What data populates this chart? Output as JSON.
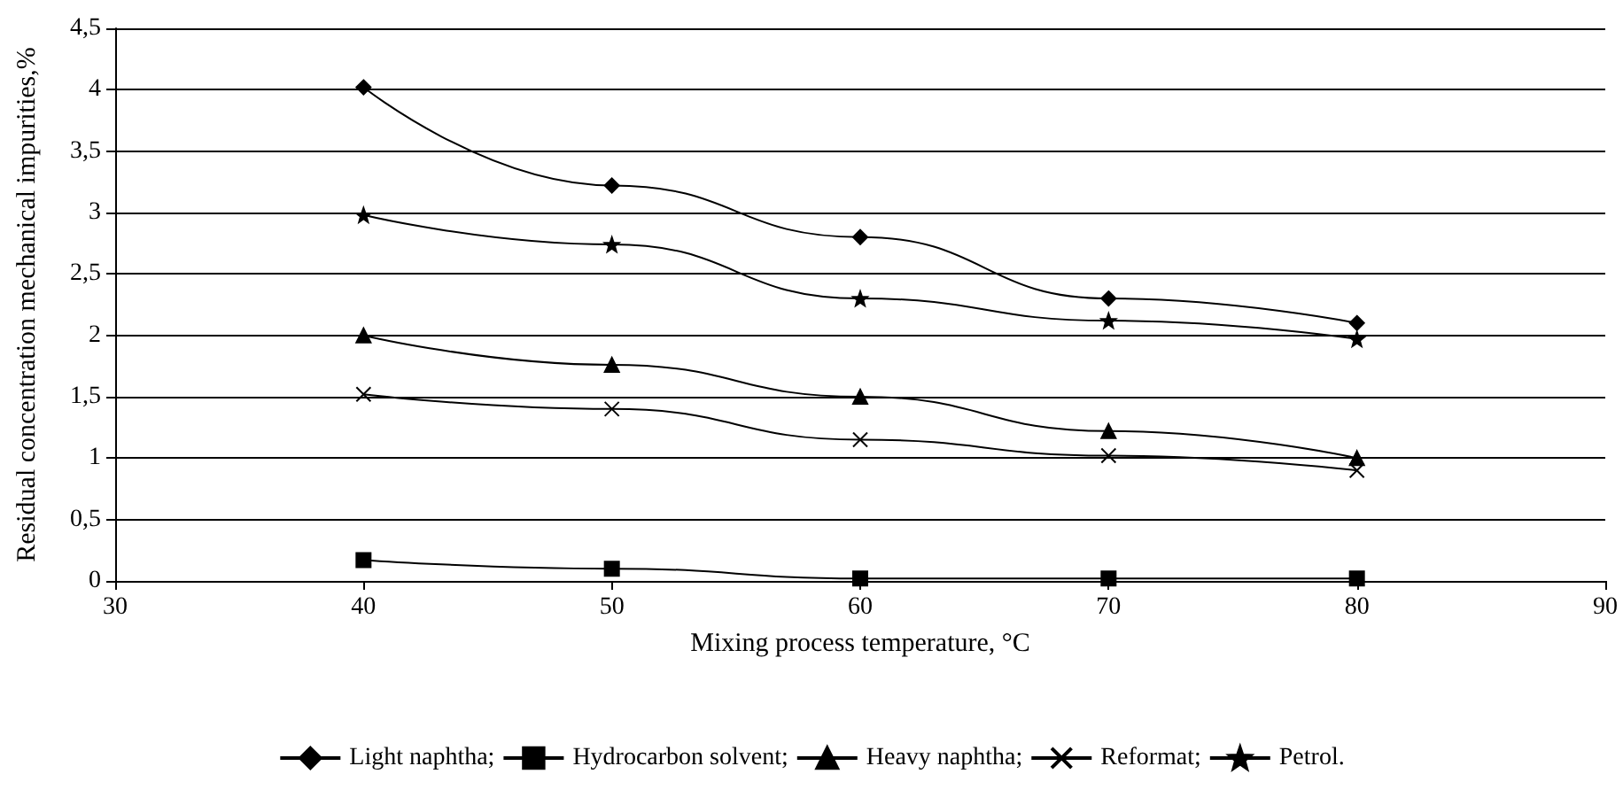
{
  "chart_data": {
    "type": "line",
    "xlabel": "Mixing process temperature, °C",
    "ylabel": "Residual concentration mechanical impurities,%",
    "x": [
      40,
      50,
      60,
      70,
      80
    ],
    "series": [
      {
        "name": "Light naphtha;",
        "color": "#000000",
        "marker": "diamond",
        "values": [
          4.02,
          3.22,
          2.8,
          2.3,
          2.1
        ]
      },
      {
        "name": "Hydrocarbon solvent;",
        "color": "#000000",
        "marker": "square",
        "values": [
          0.17,
          0.1,
          0.02,
          0.02,
          0.02
        ]
      },
      {
        "name": "Heavy naphtha;",
        "color": "#000000",
        "marker": "triangle",
        "values": [
          2.0,
          1.76,
          1.5,
          1.22,
          1.0
        ]
      },
      {
        "name": "Reformat;",
        "color": "#000000",
        "marker": "cross",
        "values": [
          1.52,
          1.4,
          1.15,
          1.02,
          0.9
        ]
      },
      {
        "name": "Petrol.",
        "color": "#000000",
        "marker": "star",
        "values": [
          2.98,
          2.74,
          2.3,
          2.12,
          1.97
        ]
      }
    ],
    "xlim": [
      30,
      90
    ],
    "xticks": [
      30,
      40,
      50,
      60,
      70,
      80,
      90
    ],
    "ylim": [
      0,
      4.5
    ],
    "yticks": [
      0,
      {
        "value": 0.5,
        "label": "0,5"
      },
      1,
      {
        "value": 1.5,
        "label": "1,5"
      },
      2,
      {
        "value": 2.5,
        "label": "2,5"
      },
      3,
      {
        "value": 3.5,
        "label": "3,5"
      },
      4,
      {
        "value": 4.5,
        "label": "4,5"
      }
    ],
    "grid": "y",
    "legend": "bottom",
    "line_style": "solid"
  }
}
